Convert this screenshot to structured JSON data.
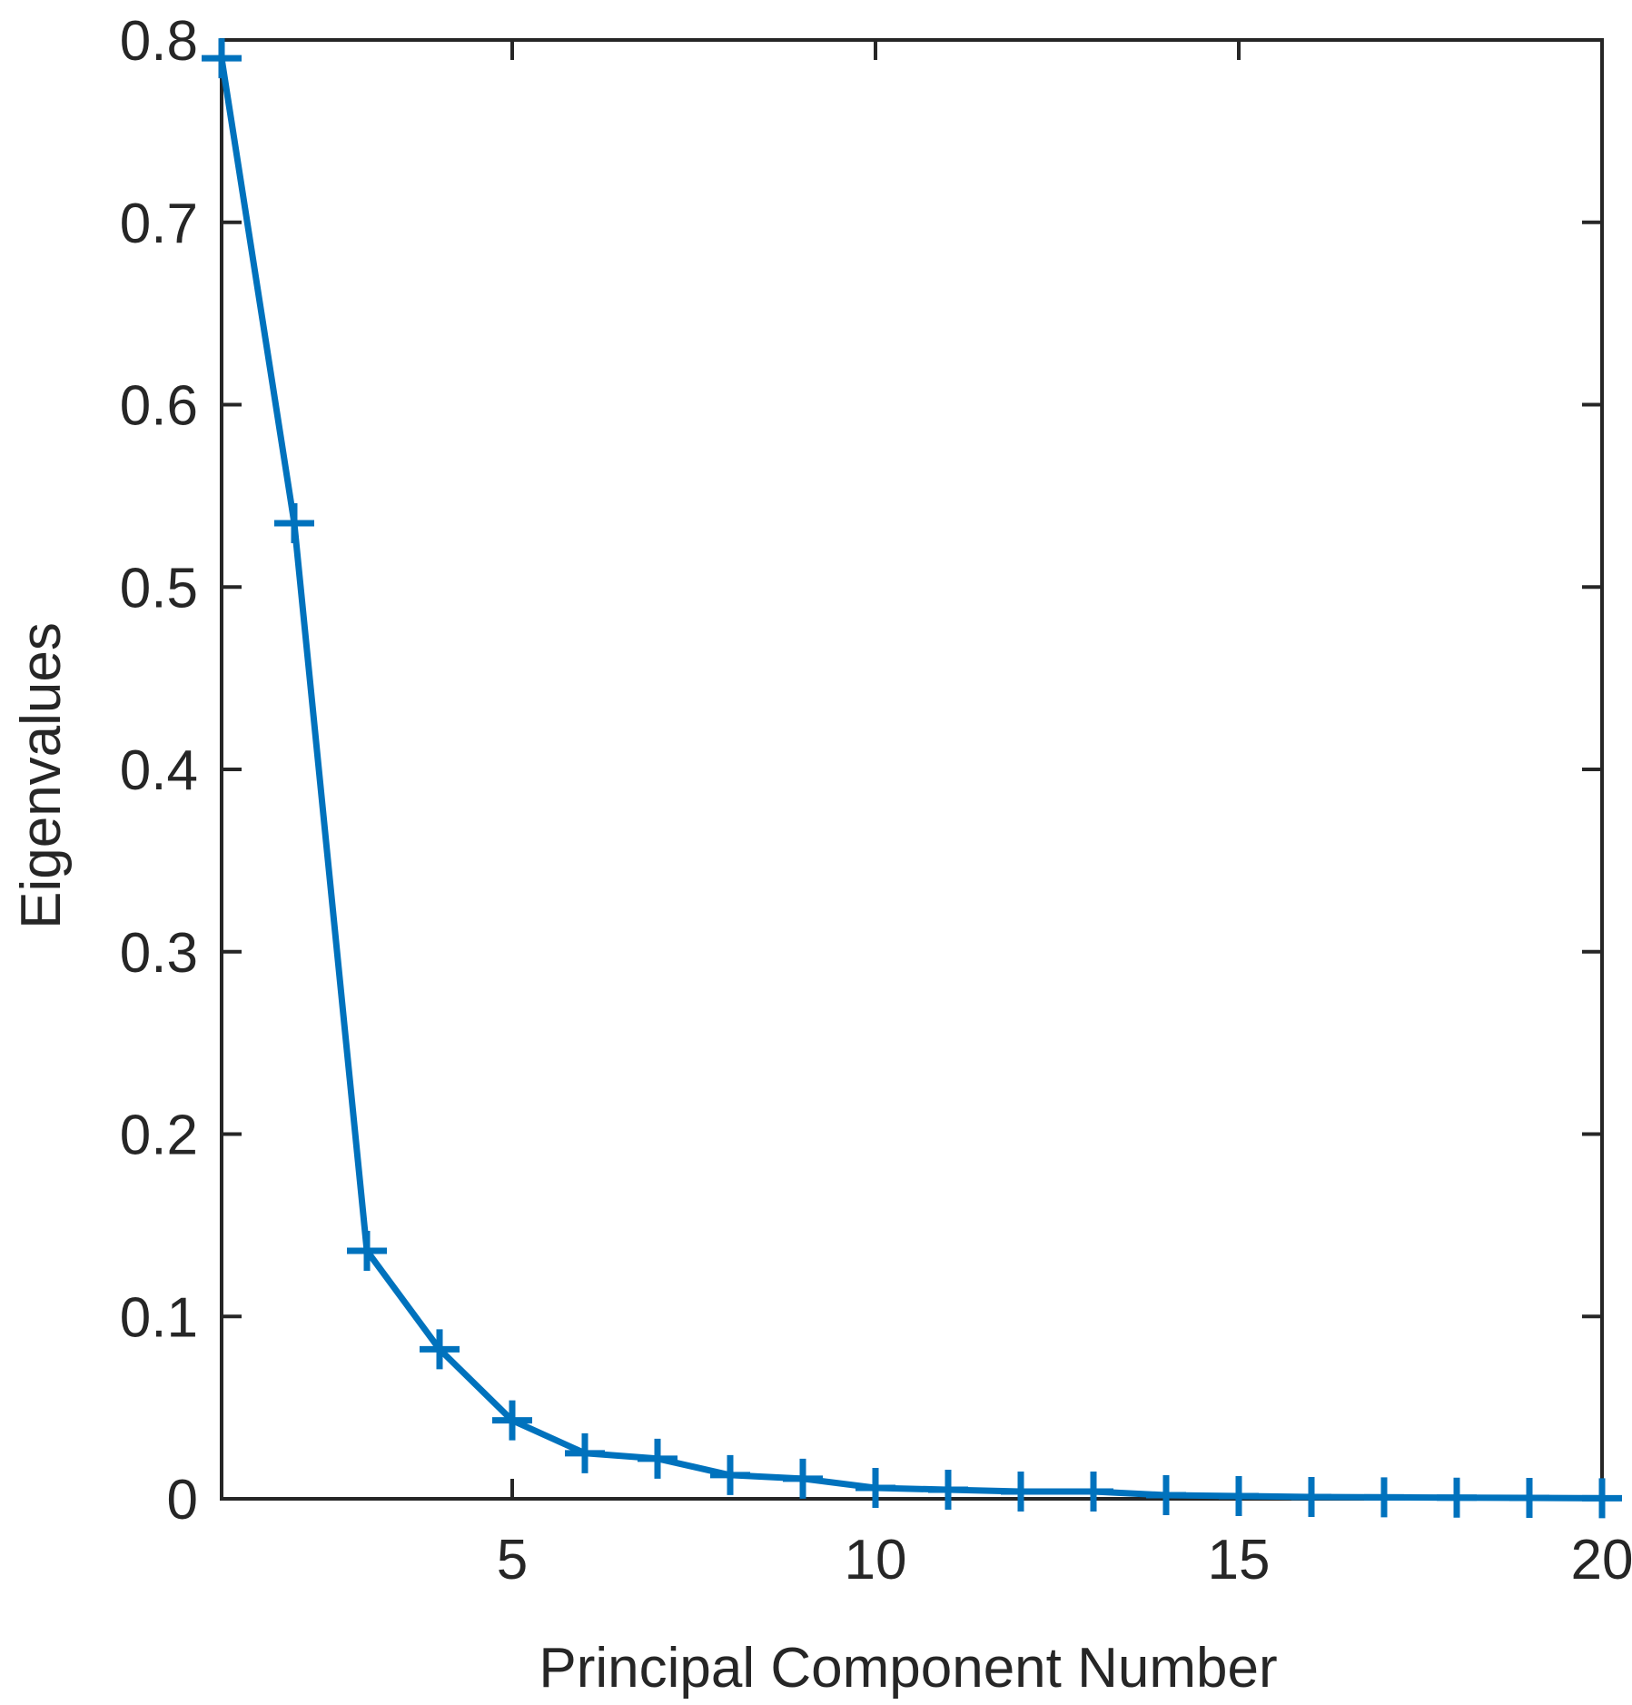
{
  "chart_data": {
    "type": "line",
    "title": "",
    "xlabel": "Principal Component Number",
    "ylabel": "Eigenvalues",
    "xlim": [
      1,
      20
    ],
    "ylim": [
      0,
      0.8
    ],
    "xticks": [
      5,
      10,
      15,
      20
    ],
    "xtick_labels": [
      "5",
      "10",
      "15",
      "20"
    ],
    "yticks": [
      0,
      0.1,
      0.2,
      0.3,
      0.4,
      0.5,
      0.6,
      0.7,
      0.8
    ],
    "ytick_labels": [
      "0",
      "0.1",
      "0.2",
      "0.3",
      "0.4",
      "0.5",
      "0.6",
      "0.7",
      "0.8"
    ],
    "grid": false,
    "box": true,
    "marker": "plus",
    "series": [
      {
        "color": "#0072BD",
        "x": [
          1,
          2,
          3,
          4,
          5,
          6,
          7,
          8,
          9,
          10,
          11,
          12,
          13,
          14,
          15,
          16,
          17,
          18,
          19,
          20
        ],
        "y": [
          0.79,
          0.535,
          0.136,
          0.082,
          0.043,
          0.025,
          0.022,
          0.013,
          0.011,
          0.006,
          0.005,
          0.004,
          0.004,
          0.002,
          0.0015,
          0.001,
          0.0008,
          0.0006,
          0.0005,
          0.0003
        ]
      }
    ],
    "axes_color": "#262626"
  }
}
